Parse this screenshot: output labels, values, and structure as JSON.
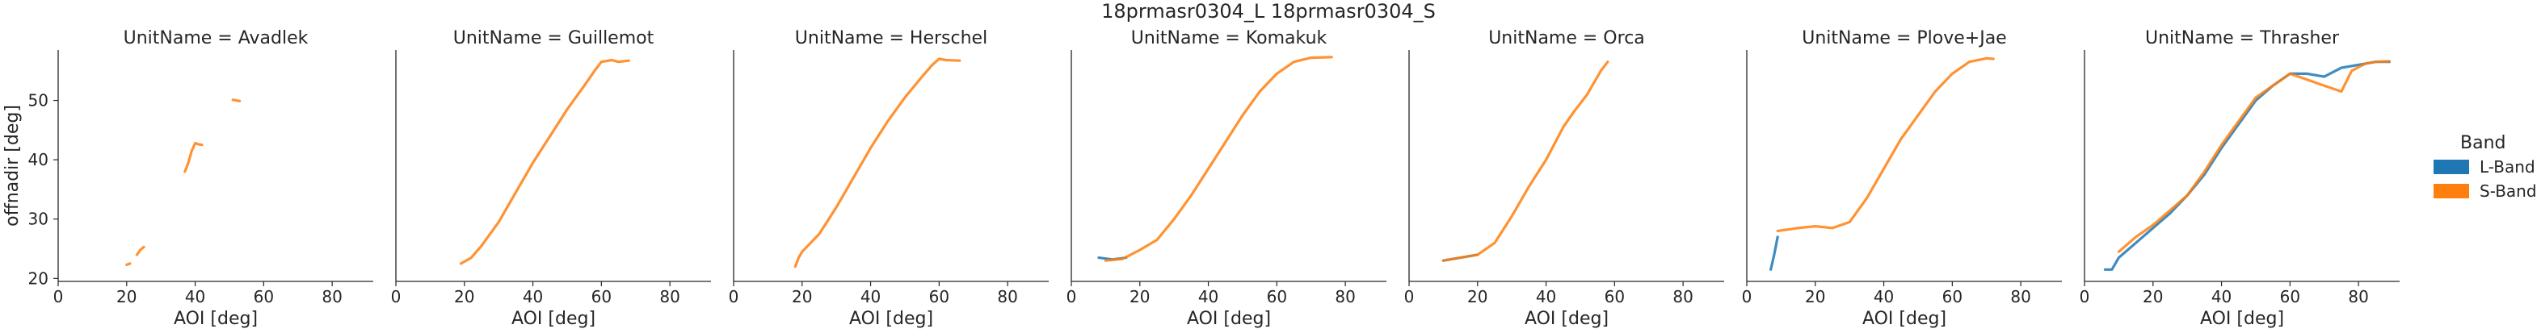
{
  "figure": {
    "suptitle": "18prmasr0304_L 18prmasr0304_S"
  },
  "legend": {
    "title": "Band",
    "entries": [
      {
        "label": "L-Band",
        "color": "#1f77b4"
      },
      {
        "label": "S-Band",
        "color": "#ff7f0e"
      }
    ]
  },
  "chart_data": {
    "type": "line",
    "facet_label": "UnitName",
    "xlabel": "AOI [deg]",
    "ylabel": "offnadir [deg]",
    "xlim": [
      0,
      92
    ],
    "ylim": [
      19.5,
      58.5
    ],
    "xticks": [
      0,
      20,
      40,
      60,
      80
    ],
    "yticks": [
      20,
      30,
      40,
      50
    ],
    "grid": false,
    "legend_position": "right",
    "facets": [
      {
        "title": "UnitName = Avadlek",
        "series": [
          {
            "name": "L-Band",
            "segments": []
          },
          {
            "name": "S-Band",
            "segments": [
              [
                [
                  20,
                  22.3
                ],
                [
                  21,
                  22.5
                ]
              ],
              [
                [
                  23,
                  24.0
                ],
                [
                  24,
                  24.8
                ],
                [
                  25,
                  25.3
                ]
              ],
              [
                [
                  37,
                  38.0
                ],
                [
                  38,
                  39.5
                ],
                [
                  39,
                  41.5
                ],
                [
                  40,
                  42.8
                ],
                [
                  41,
                  42.6
                ],
                [
                  42,
                  42.5
                ]
              ],
              [
                [
                  51,
                  50.1
                ],
                [
                  53,
                  49.9
                ]
              ]
            ]
          }
        ]
      },
      {
        "title": "UnitName = Guillemot",
        "series": [
          {
            "name": "L-Band",
            "segments": []
          },
          {
            "name": "S-Band",
            "segments": [
              [
                [
                  19,
                  22.5
                ],
                [
                  22,
                  23.5
                ],
                [
                  25,
                  25.5
                ],
                [
                  30,
                  29.5
                ],
                [
                  35,
                  34.5
                ],
                [
                  40,
                  39.5
                ],
                [
                  45,
                  44.0
                ],
                [
                  50,
                  48.5
                ],
                [
                  55,
                  52.5
                ],
                [
                  58,
                  55.0
                ],
                [
                  60,
                  56.5
                ],
                [
                  63,
                  56.8
                ],
                [
                  65,
                  56.5
                ],
                [
                  68,
                  56.7
                ]
              ]
            ]
          }
        ]
      },
      {
        "title": "UnitName = Herschel",
        "series": [
          {
            "name": "L-Band",
            "segments": []
          },
          {
            "name": "S-Band",
            "segments": [
              [
                [
                  18,
                  22.0
                ],
                [
                  19,
                  23.5
                ],
                [
                  20,
                  24.5
                ],
                [
                  25,
                  27.5
                ],
                [
                  30,
                  32.0
                ],
                [
                  35,
                  37.0
                ],
                [
                  40,
                  42.0
                ],
                [
                  45,
                  46.5
                ],
                [
                  50,
                  50.5
                ],
                [
                  55,
                  54.0
                ],
                [
                  58,
                  56.0
                ],
                [
                  60,
                  57.0
                ],
                [
                  62,
                  56.8
                ],
                [
                  66,
                  56.7
                ]
              ]
            ]
          }
        ]
      },
      {
        "title": "UnitName = Komakuk",
        "series": [
          {
            "name": "L-Band",
            "segments": [
              [
                [
                  8,
                  23.5
                ],
                [
                  12,
                  23.2
                ],
                [
                  16,
                  23.5
                ]
              ]
            ]
          },
          {
            "name": "S-Band",
            "segments": [
              [
                [
                  10,
                  23.0
                ],
                [
                  15,
                  23.3
                ],
                [
                  20,
                  24.8
                ],
                [
                  25,
                  26.5
                ],
                [
                  30,
                  30.0
                ],
                [
                  35,
                  34.0
                ],
                [
                  40,
                  38.5
                ],
                [
                  45,
                  43.0
                ],
                [
                  50,
                  47.5
                ],
                [
                  55,
                  51.5
                ],
                [
                  60,
                  54.5
                ],
                [
                  65,
                  56.5
                ],
                [
                  70,
                  57.2
                ],
                [
                  76,
                  57.3
                ]
              ]
            ]
          }
        ]
      },
      {
        "title": "UnitName = Orca",
        "series": [
          {
            "name": "L-Band",
            "segments": [
              [
                [
                  10,
                  23.0
                ],
                [
                  15,
                  23.5
                ],
                [
                  20,
                  24.0
                ]
              ]
            ]
          },
          {
            "name": "S-Band",
            "segments": [
              [
                [
                  10,
                  23.0
                ],
                [
                  15,
                  23.5
                ],
                [
                  20,
                  24.0
                ],
                [
                  25,
                  26.0
                ],
                [
                  30,
                  30.5
                ],
                [
                  35,
                  35.5
                ],
                [
                  40,
                  40.0
                ],
                [
                  45,
                  45.5
                ],
                [
                  48,
                  48.0
                ],
                [
                  52,
                  51.0
                ],
                [
                  56,
                  55.0
                ],
                [
                  58,
                  56.5
                ]
              ]
            ]
          }
        ]
      },
      {
        "title": "UnitName = Plove+Jae",
        "series": [
          {
            "name": "L-Band",
            "segments": [
              [
                [
                  7,
                  21.5
                ],
                [
                  8,
                  24.0
                ],
                [
                  9,
                  27.0
                ]
              ]
            ]
          },
          {
            "name": "S-Band",
            "segments": [
              [
                [
                  9,
                  28.0
                ],
                [
                  15,
                  28.5
                ],
                [
                  20,
                  28.8
                ],
                [
                  25,
                  28.5
                ],
                [
                  30,
                  29.5
                ],
                [
                  35,
                  33.5
                ],
                [
                  40,
                  38.5
                ],
                [
                  45,
                  43.5
                ],
                [
                  50,
                  47.5
                ],
                [
                  55,
                  51.5
                ],
                [
                  60,
                  54.5
                ],
                [
                  65,
                  56.5
                ],
                [
                  70,
                  57.1
                ],
                [
                  72,
                  57.0
                ]
              ]
            ]
          }
        ]
      },
      {
        "title": "UnitName = Thrasher",
        "series": [
          {
            "name": "L-Band",
            "segments": [
              [
                [
                  6,
                  21.5
                ],
                [
                  8,
                  21.5
                ],
                [
                  10,
                  23.5
                ],
                [
                  15,
                  26.0
                ],
                [
                  20,
                  28.5
                ],
                [
                  25,
                  31.0
                ],
                [
                  30,
                  34.0
                ],
                [
                  35,
                  37.5
                ],
                [
                  40,
                  42.0
                ],
                [
                  45,
                  46.0
                ],
                [
                  50,
                  50.0
                ],
                [
                  55,
                  52.5
                ],
                [
                  60,
                  54.5
                ],
                [
                  65,
                  54.5
                ],
                [
                  70,
                  54.0
                ],
                [
                  75,
                  55.5
                ],
                [
                  80,
                  56.0
                ],
                [
                  85,
                  56.5
                ],
                [
                  89,
                  56.5
                ]
              ]
            ]
          },
          {
            "name": "S-Band",
            "segments": [
              [
                [
                  10,
                  24.5
                ],
                [
                  15,
                  27.0
                ],
                [
                  20,
                  29.0
                ],
                [
                  25,
                  31.5
                ],
                [
                  30,
                  34.0
                ],
                [
                  35,
                  38.0
                ],
                [
                  40,
                  42.5
                ],
                [
                  45,
                  46.5
                ],
                [
                  50,
                  50.5
                ],
                [
                  55,
                  52.5
                ],
                [
                  60,
                  54.5
                ],
                [
                  65,
                  53.5
                ],
                [
                  70,
                  52.5
                ],
                [
                  75,
                  51.5
                ],
                [
                  78,
                  55.0
                ],
                [
                  82,
                  56.2
                ],
                [
                  85,
                  56.5
                ],
                [
                  89,
                  56.6
                ]
              ]
            ]
          }
        ]
      }
    ]
  }
}
